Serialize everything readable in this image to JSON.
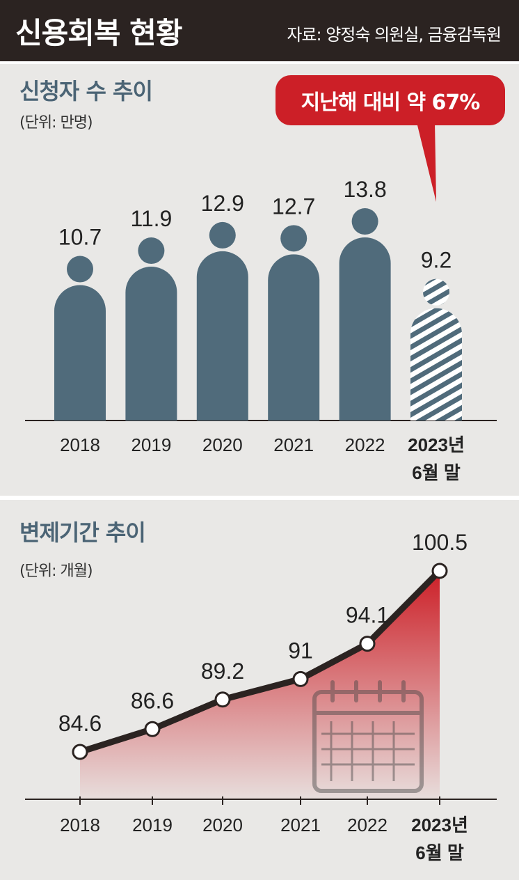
{
  "header": {
    "title": "신용회복 현황",
    "source": "자료: 양정숙 의원실, 금융감독원"
  },
  "colors": {
    "header_bg": "#2b2321",
    "panel_bg": "#e9e8e6",
    "figure": "#506b7b",
    "accent_red": "#cc1f27",
    "line": "#2b2321"
  },
  "chart_data": [
    {
      "type": "bar",
      "title": "신청자 수 추이",
      "unit_label": "(단위: 만명)",
      "categories": [
        "2018",
        "2019",
        "2020",
        "2021",
        "2022",
        "2023년 6월 말"
      ],
      "category_lines": [
        [
          "2018"
        ],
        [
          "2019"
        ],
        [
          "2020"
        ],
        [
          "2021"
        ],
        [
          "2022"
        ],
        [
          "2023년",
          "6월 말"
        ]
      ],
      "values": [
        10.7,
        11.9,
        12.9,
        12.7,
        13.8,
        9.2
      ],
      "value_labels": [
        "10.7",
        "11.9",
        "12.9",
        "12.7",
        "13.8",
        "9.2"
      ],
      "highlight_last": "hatched",
      "annotation": "지난해 대비 약 67%",
      "marker": "person-icon"
    },
    {
      "type": "area",
      "title": "변제기간 추이",
      "unit_label": "(단위: 개월)",
      "categories": [
        "2018",
        "2019",
        "2020",
        "2021",
        "2022",
        "2023년 6월 말"
      ],
      "category_lines": [
        [
          "2018"
        ],
        [
          "2019"
        ],
        [
          "2020"
        ],
        [
          "2021"
        ],
        [
          "2022"
        ],
        [
          "2023년",
          "6월 말"
        ]
      ],
      "values": [
        84.6,
        86.6,
        89.2,
        91,
        94.1,
        100.5
      ],
      "value_labels": [
        "84.6",
        "86.6",
        "89.2",
        "91",
        "94.1",
        "100.5"
      ],
      "decoration": "calendar-icon"
    }
  ]
}
